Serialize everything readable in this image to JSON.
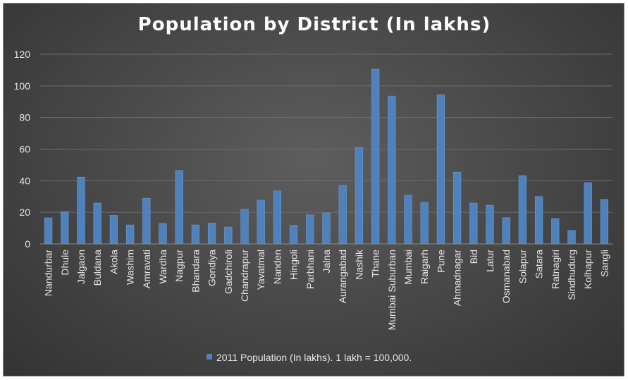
{
  "chart_data": {
    "type": "bar",
    "title": "Population by District (In lakhs)",
    "xlabel": "",
    "ylabel": "",
    "ylim": [
      0,
      120
    ],
    "yticks": [
      0,
      20,
      40,
      60,
      80,
      100,
      120
    ],
    "grid": true,
    "legend_position": "bottom",
    "categories": [
      "Nandurbar",
      "Dhule",
      "Jalgaon",
      "Buldana",
      "Akola",
      "Washim",
      "Amravati",
      "Wardha",
      "Nagpur",
      "Bhandara",
      "Gondiya",
      "Gadchiroli",
      "Chandrapur",
      "Yavatmal",
      "Nanden",
      "Hingoli",
      "Parbhani",
      "Jalna",
      "Aurangabad",
      "Nashik",
      "Thane",
      "Mumbai Suburban",
      "Mumbai",
      "Raigarh",
      "Pune",
      "Ahmadnagar",
      "Bid",
      "Latur",
      "Osmanabad",
      "Solapur",
      "Satara",
      "Ratnagiri",
      "Sindhudurg",
      "Kolhapur",
      "Sangli"
    ],
    "series": [
      {
        "name": "2011 Population (In lakhs). 1 lakh = 100,000.",
        "color": "#4f81bd",
        "values": [
          16.5,
          20.5,
          42.3,
          25.9,
          18.1,
          12.0,
          28.9,
          13.0,
          46.5,
          12.0,
          13.2,
          10.7,
          22.0,
          27.7,
          33.6,
          11.8,
          18.4,
          19.6,
          37.0,
          61.1,
          110.6,
          93.6,
          30.9,
          26.3,
          94.3,
          45.4,
          25.9,
          24.5,
          16.6,
          43.2,
          30.0,
          16.1,
          8.5,
          38.8,
          28.2
        ]
      }
    ]
  },
  "colors": {
    "bar": "#4f81bd",
    "bar_edge": "#6e9bd0"
  }
}
